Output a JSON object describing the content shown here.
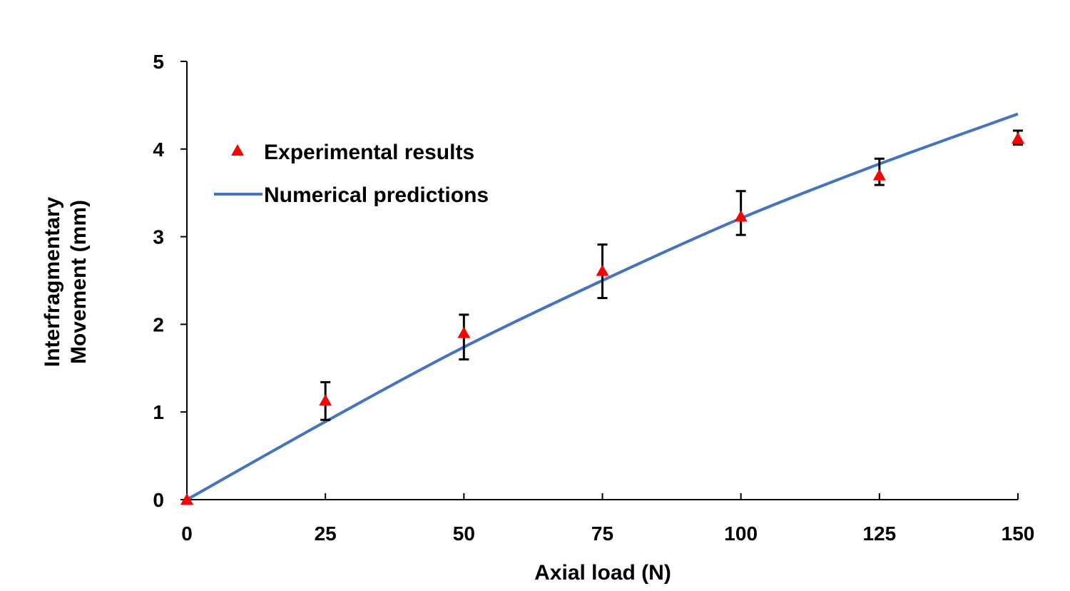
{
  "chart_data": {
    "type": "scatter",
    "title": "",
    "xlabel": "Axial load (N)",
    "ylabel_lines": [
      "Interfragmentary",
      "Movement  (mm)"
    ],
    "xlim": [
      0,
      150
    ],
    "ylim": [
      0,
      5
    ],
    "xticks": [
      0,
      25,
      50,
      75,
      100,
      125,
      150
    ],
    "yticks": [
      0,
      1,
      2,
      3,
      4,
      5
    ],
    "grid": false,
    "legend_position": "upper-left",
    "series": [
      {
        "name": "Experimental results",
        "kind": "points",
        "marker": "triangle",
        "color": "#ff0000",
        "x": [
          0,
          25,
          50,
          75,
          100,
          125,
          150
        ],
        "y": [
          0.0,
          1.13,
          1.9,
          2.61,
          3.23,
          3.7,
          4.12
        ],
        "error_low": [
          0.0,
          0.91,
          1.6,
          2.3,
          3.02,
          3.59,
          4.05
        ],
        "error_high": [
          0.0,
          1.34,
          2.11,
          2.91,
          3.52,
          3.89,
          4.21
        ]
      },
      {
        "name": "Numerical predictions",
        "kind": "line",
        "color": "#4472c4",
        "x": [
          0,
          25,
          50,
          75,
          100,
          125,
          150
        ],
        "y": [
          0.0,
          0.89,
          1.74,
          2.5,
          3.21,
          3.83,
          4.4
        ]
      }
    ]
  }
}
